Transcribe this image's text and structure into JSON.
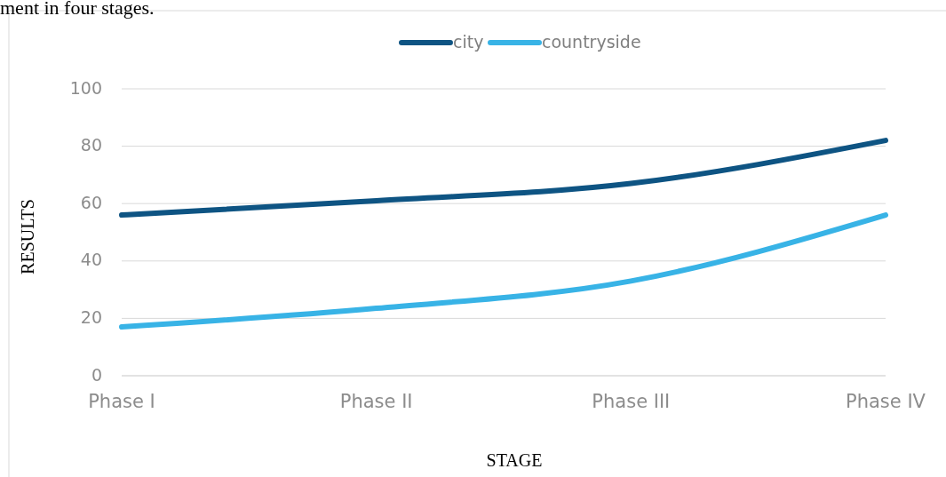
{
  "chart_data": {
    "type": "line",
    "annotations": [
      "ment in four stages."
    ],
    "xlabel": "STAGE",
    "ylabel": "RESULTS",
    "categories": [
      "Phase I",
      "Phase II",
      "Phase III",
      "Phase IV"
    ],
    "series": [
      {
        "name": "city",
        "color": "#0e5483",
        "values": [
          56,
          61,
          67,
          82
        ]
      },
      {
        "name": "countryside",
        "color": "#38b3e6",
        "values": [
          17,
          23.5,
          33,
          56
        ]
      }
    ],
    "ylim": [
      0,
      100
    ],
    "yticks": [
      0,
      20,
      40,
      60,
      80,
      100
    ],
    "grid": "y",
    "legend": "top",
    "line_style": "solid"
  }
}
